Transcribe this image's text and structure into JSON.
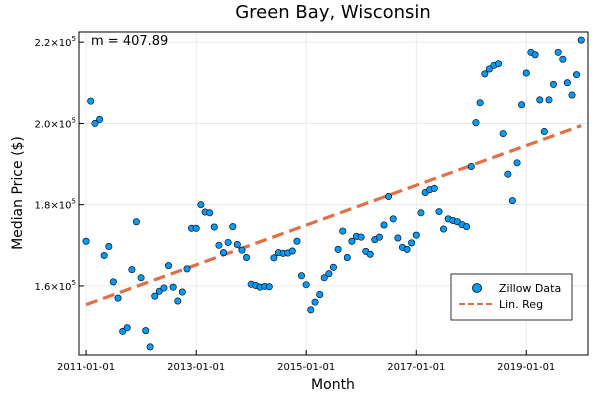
{
  "chart_data": {
    "type": "scatter",
    "title": "Green Bay, Wisconsin",
    "xlabel": "Month",
    "ylabel": "Median Price ($)",
    "annotation": "m = 407.89",
    "x_start": "2011-01-01",
    "x_ticks": [
      "2011-01-01",
      "2013-01-01",
      "2015-01-01",
      "2017-01-01",
      "2019-01-01"
    ],
    "y_ticks": [
      160000,
      180000,
      200000,
      220000
    ],
    "y_tick_mantissa": [
      "1.6",
      "1.8",
      "2.0",
      "2.2"
    ],
    "y_tick_exponent": "5",
    "xlim": [
      "2010-11-15",
      "2020-02-15"
    ],
    "ylim": [
      143000,
      222500
    ],
    "grid": true,
    "legend_position": "bottom-right",
    "series": [
      {
        "name": "Zillow Data",
        "kind": "scatter",
        "color": "#009AFA",
        "values": [
          171000,
          205500,
          200000,
          201000,
          167500,
          169700,
          161000,
          157000,
          148800,
          149700,
          164000,
          175800,
          162000,
          149000,
          145000,
          157500,
          158700,
          159500,
          165000,
          159700,
          156300,
          158500,
          164200,
          174200,
          174200,
          180000,
          178200,
          178000,
          174500,
          170000,
          168200,
          170700,
          174600,
          170200,
          168800,
          167000,
          160400,
          160100,
          159700,
          159900,
          159800,
          166900,
          168200,
          168000,
          168100,
          168600,
          171000,
          162500,
          160300,
          154100,
          156000,
          157900,
          162000,
          163000,
          164600,
          169000,
          173500,
          167000,
          171000,
          172200,
          172000,
          168500,
          167800,
          171400,
          172000,
          175000,
          182000,
          176500,
          171800,
          169500,
          169000,
          170600,
          172500,
          178000,
          183000,
          183700,
          184000,
          178300,
          174000,
          176500,
          176100,
          175800,
          175100,
          174600,
          189400,
          200200,
          205100,
          212200,
          213400,
          214300,
          214700,
          197500,
          187500,
          181000,
          190300,
          204600,
          212400,
          217500,
          216900,
          205800,
          198000,
          205800,
          209600,
          217500,
          215800,
          210000,
          207000,
          212000,
          220500
        ]
      },
      {
        "name": "Lin. Reg",
        "kind": "line",
        "color": "#E26F46",
        "slope_per_month": 407.89,
        "intercept_at_start": 155400
      }
    ]
  }
}
